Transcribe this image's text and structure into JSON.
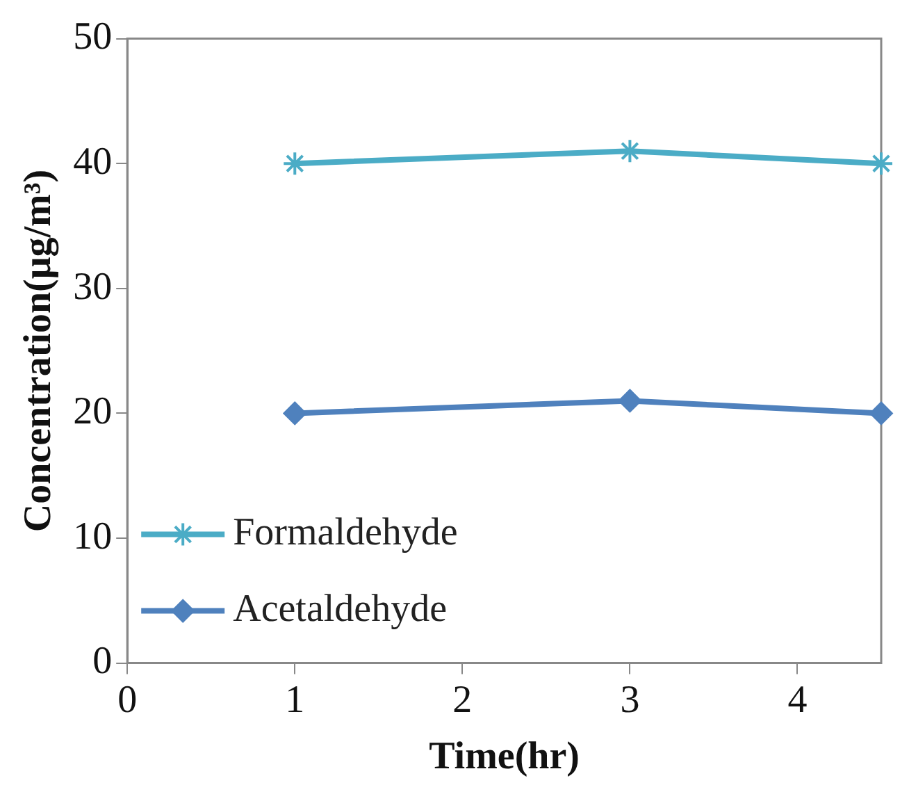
{
  "chart_data": {
    "type": "line",
    "xlabel": "Time(hr)",
    "ylabel": "Concentration(μg/m³)",
    "series": [
      {
        "name": "Formaldehyde",
        "color": "#4bacc6",
        "x": [
          1,
          3,
          4.5
        ],
        "values": [
          40,
          41,
          40
        ],
        "marker": "cross"
      },
      {
        "name": "Acetaldehyde",
        "color": "#4f81bd",
        "x": [
          1,
          3,
          4.5
        ],
        "values": [
          20,
          21,
          20
        ],
        "marker": "diamond"
      }
    ],
    "xlim": [
      0,
      4.5
    ],
    "xticks": [
      0,
      1,
      2,
      3,
      4
    ],
    "ylim": [
      0,
      50
    ],
    "yticks": [
      0,
      10,
      20,
      30,
      40,
      50
    ],
    "grid": false,
    "legend": "bottom left",
    "line_style": "solid"
  }
}
